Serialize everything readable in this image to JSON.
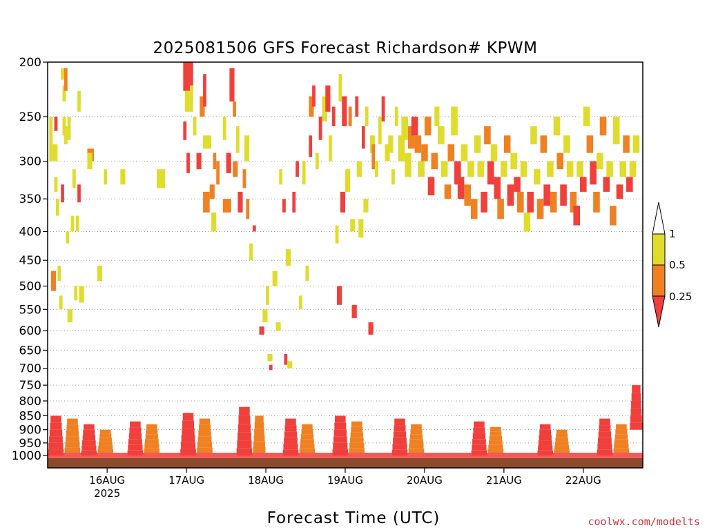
{
  "chart_data": {
    "type": "heatmap",
    "title": "2025081506 GFS Forecast Richardson# KPWM",
    "xlabel": "Forecast Time (UTC)",
    "ylabel": "",
    "credit": "coolwx.com/modelts",
    "y_scale": "log-pressure (inverted)",
    "ylim": [
      1000,
      200
    ],
    "xlim_hours": [
      0,
      180
    ],
    "y_ticks": [
      200,
      250,
      300,
      350,
      400,
      450,
      500,
      550,
      600,
      650,
      700,
      750,
      800,
      850,
      900,
      950,
      1000
    ],
    "x_ticks": [
      {
        "label": "16AUG",
        "sublabel": "2025",
        "hour": 18
      },
      {
        "label": "17AUG",
        "sublabel": "",
        "hour": 42
      },
      {
        "label": "18AUG",
        "sublabel": "",
        "hour": 66
      },
      {
        "label": "19AUG",
        "sublabel": "",
        "hour": 90
      },
      {
        "label": "20AUG",
        "sublabel": "",
        "hour": 114
      },
      {
        "label": "21AUG",
        "sublabel": "",
        "hour": 138
      },
      {
        "label": "22AUG",
        "sublabel": "",
        "hour": 162
      }
    ],
    "colorbar": {
      "levels": [
        {
          "label": "0.25",
          "value": 0.25
        },
        {
          "label": "0.5",
          "value": 0.5
        },
        {
          "label": "1",
          "value": 1
        }
      ],
      "bins": [
        {
          "range": "< 0.25",
          "color": "#f0403c"
        },
        {
          "range": "0.25 - 0.5",
          "color": "#ef8123"
        },
        {
          "range": "0.5 - 1",
          "color": "#e0dc2c"
        },
        {
          "range": "> 1",
          "color": "#ffffff"
        }
      ]
    },
    "colors": {
      "red": "#f0403c",
      "orange": "#ef8123",
      "yellow": "#e0dc2c",
      "ground": "#8b4a2b"
    },
    "grid": "dotted horizontal lines at pressure ticks",
    "cells": [
      [
        0.5,
        1.5,
        250,
        275,
        "y"
      ],
      [
        0.5,
        1.5,
        275,
        300,
        "y"
      ],
      [
        1,
        2.5,
        470,
        510,
        "o"
      ],
      [
        1.5,
        3,
        280,
        300,
        "y"
      ],
      [
        2,
        3,
        250,
        265,
        "r"
      ],
      [
        2,
        3,
        320,
        340,
        "y"
      ],
      [
        2.5,
        3.5,
        350,
        375,
        "y"
      ],
      [
        3,
        4,
        460,
        490,
        "y"
      ],
      [
        3.5,
        4.5,
        520,
        550,
        "y"
      ],
      [
        4,
        5,
        205,
        215,
        "y"
      ],
      [
        4,
        5,
        330,
        355,
        "r"
      ],
      [
        4.5,
        5.5,
        220,
        235,
        "y"
      ],
      [
        4.5,
        5.5,
        250,
        270,
        "y"
      ],
      [
        5,
        6,
        205,
        225,
        "o"
      ],
      [
        5,
        6,
        260,
        280,
        "y"
      ],
      [
        5.5,
        6.5,
        400,
        420,
        "y"
      ],
      [
        6,
        7,
        250,
        275,
        "y"
      ],
      [
        6,
        7.5,
        550,
        580,
        "y"
      ],
      [
        7,
        8,
        375,
        400,
        "y"
      ],
      [
        7.5,
        8.5,
        310,
        335,
        "y"
      ],
      [
        8,
        9,
        500,
        530,
        "y"
      ],
      [
        8.5,
        9.5,
        375,
        400,
        "y"
      ],
      [
        9,
        10,
        225,
        245,
        "y"
      ],
      [
        9,
        10,
        330,
        355,
        "r"
      ],
      [
        9.5,
        11,
        500,
        535,
        "y"
      ],
      [
        12,
        14,
        285,
        300,
        "o"
      ],
      [
        12,
        13.5,
        290,
        310,
        "y"
      ],
      [
        15,
        16.5,
        460,
        490,
        "y"
      ],
      [
        17,
        18,
        310,
        330,
        "y"
      ],
      [
        22,
        23.5,
        310,
        330,
        "y"
      ],
      [
        33,
        35.5,
        310,
        335,
        "y"
      ],
      [
        41,
        42.5,
        200,
        225,
        "r"
      ],
      [
        42.5,
        44,
        200,
        225,
        "r"
      ],
      [
        41.5,
        43,
        225,
        245,
        "y"
      ],
      [
        41,
        42,
        255,
        275,
        "r"
      ],
      [
        42,
        43,
        290,
        315,
        "r"
      ],
      [
        43,
        44,
        220,
        245,
        "y"
      ],
      [
        44,
        45,
        250,
        270,
        "y"
      ],
      [
        45,
        46.5,
        290,
        310,
        "r"
      ],
      [
        46,
        47.5,
        230,
        250,
        "o"
      ],
      [
        47,
        48,
        210,
        240,
        "r"
      ],
      [
        47,
        49.5,
        270,
        285,
        "y"
      ],
      [
        47,
        49,
        340,
        370,
        "o"
      ],
      [
        49,
        50.5,
        330,
        350,
        "o"
      ],
      [
        49.5,
        51,
        370,
        400,
        "y"
      ],
      [
        50,
        51,
        290,
        310,
        "o"
      ],
      [
        51,
        52,
        300,
        330,
        "o"
      ],
      [
        53,
        54,
        250,
        275,
        "y"
      ],
      [
        53,
        55.5,
        350,
        370,
        "o"
      ],
      [
        54,
        55.5,
        290,
        315,
        "r"
      ],
      [
        56,
        57.5,
        300,
        320,
        "o"
      ],
      [
        55,
        56.5,
        205,
        235,
        "r"
      ],
      [
        56,
        57,
        235,
        250,
        "o"
      ],
      [
        57,
        58,
        260,
        290,
        "y"
      ],
      [
        57.5,
        59,
        340,
        370,
        "r"
      ],
      [
        59,
        60,
        310,
        335,
        "o"
      ],
      [
        59.5,
        61,
        270,
        300,
        "y"
      ],
      [
        60,
        61,
        350,
        380,
        "o"
      ],
      [
        61,
        62,
        420,
        450,
        "y"
      ],
      [
        62,
        63,
        390,
        400,
        "r"
      ],
      [
        64,
        65.5,
        590,
        610,
        "r"
      ],
      [
        65,
        66.5,
        550,
        580,
        "y"
      ],
      [
        66,
        67,
        500,
        540,
        "y"
      ],
      [
        66.5,
        68,
        660,
        680,
        "y"
      ],
      [
        67,
        68,
        690,
        705,
        "r"
      ],
      [
        68,
        69.5,
        470,
        500,
        "y"
      ],
      [
        69,
        70.5,
        580,
        600,
        "y"
      ],
      [
        70,
        71,
        310,
        330,
        "y"
      ],
      [
        71,
        72,
        350,
        370,
        "r"
      ],
      [
        71.5,
        72.5,
        660,
        690,
        "r"
      ],
      [
        72,
        73.5,
        430,
        460,
        "y"
      ],
      [
        72.5,
        74,
        680,
        700,
        "y"
      ],
      [
        74,
        75,
        340,
        370,
        "r"
      ],
      [
        75,
        76,
        300,
        320,
        "r"
      ],
      [
        76,
        77,
        520,
        550,
        "y"
      ],
      [
        77,
        78,
        300,
        330,
        "y"
      ],
      [
        78,
        79,
        460,
        490,
        "y"
      ],
      [
        79,
        80,
        270,
        295,
        "r"
      ],
      [
        79,
        80.5,
        230,
        250,
        "o"
      ],
      [
        80,
        81,
        220,
        240,
        "r"
      ],
      [
        81,
        82,
        290,
        310,
        "y"
      ],
      [
        82,
        83,
        250,
        275,
        "r"
      ],
      [
        83,
        84.5,
        230,
        255,
        "y"
      ],
      [
        84,
        85.5,
        220,
        245,
        "r"
      ],
      [
        85,
        86,
        270,
        300,
        "y"
      ],
      [
        86,
        87,
        240,
        260,
        "r"
      ],
      [
        87,
        88,
        390,
        420,
        "y"
      ],
      [
        87.5,
        89,
        500,
        540,
        "r"
      ],
      [
        88,
        89,
        210,
        235,
        "y"
      ],
      [
        88.5,
        90,
        340,
        370,
        "r"
      ],
      [
        89,
        90.5,
        230,
        260,
        "r"
      ],
      [
        90,
        91.5,
        310,
        340,
        "y"
      ],
      [
        91,
        92,
        240,
        260,
        "o"
      ],
      [
        91.5,
        93,
        380,
        400,
        "y"
      ],
      [
        92,
        93.5,
        540,
        570,
        "r"
      ],
      [
        93,
        94,
        230,
        250,
        "r"
      ],
      [
        93.5,
        95,
        300,
        320,
        "y"
      ],
      [
        94,
        95.5,
        380,
        410,
        "y"
      ],
      [
        95,
        96,
        260,
        285,
        "r"
      ],
      [
        95.5,
        97,
        350,
        370,
        "y"
      ],
      [
        96,
        97,
        240,
        260,
        "y"
      ],
      [
        97,
        98.5,
        580,
        610,
        "r"
      ],
      [
        97.5,
        99,
        270,
        290,
        "y"
      ],
      [
        98,
        99,
        280,
        310,
        "o"
      ],
      [
        99,
        100,
        300,
        320,
        "y"
      ],
      [
        100,
        101,
        250,
        280,
        "y"
      ],
      [
        101,
        102,
        230,
        255,
        "r"
      ],
      [
        102,
        103.5,
        280,
        300,
        "y"
      ],
      [
        103,
        104.5,
        270,
        290,
        "y"
      ],
      [
        104,
        105,
        310,
        330,
        "y"
      ],
      [
        105,
        106,
        240,
        260,
        "y"
      ],
      [
        106,
        108,
        270,
        300,
        "y"
      ],
      [
        107,
        109,
        250,
        275,
        "y"
      ],
      [
        108,
        110,
        290,
        320,
        "y"
      ],
      [
        109,
        111,
        260,
        285,
        "o"
      ],
      [
        110,
        112,
        250,
        270,
        "r"
      ],
      [
        111,
        113,
        270,
        290,
        "o"
      ],
      [
        112,
        114,
        300,
        320,
        "y"
      ],
      [
        113,
        115,
        280,
        300,
        "o"
      ],
      [
        114,
        116,
        250,
        270,
        "o"
      ],
      [
        115,
        117,
        320,
        345,
        "r"
      ],
      [
        116,
        118,
        290,
        310,
        "o"
      ],
      [
        117,
        118.5,
        240,
        260,
        "y"
      ],
      [
        118,
        120,
        260,
        280,
        "y"
      ],
      [
        119,
        121,
        300,
        320,
        "y"
      ],
      [
        120,
        122,
        330,
        350,
        "o"
      ],
      [
        121,
        123,
        280,
        300,
        "o"
      ],
      [
        122,
        124,
        240,
        270,
        "y"
      ],
      [
        123,
        125,
        300,
        330,
        "r"
      ],
      [
        124,
        126,
        320,
        350,
        "r"
      ],
      [
        125,
        127,
        280,
        300,
        "y"
      ],
      [
        126,
        128,
        330,
        360,
        "o"
      ],
      [
        127,
        129,
        300,
        320,
        "y"
      ],
      [
        128,
        130,
        350,
        380,
        "o"
      ],
      [
        129,
        131,
        270,
        290,
        "y"
      ],
      [
        130,
        132,
        300,
        320,
        "y"
      ],
      [
        131,
        133,
        340,
        370,
        "r"
      ],
      [
        132,
        134,
        260,
        280,
        "o"
      ],
      [
        133,
        135,
        300,
        330,
        "r"
      ],
      [
        134,
        136,
        280,
        300,
        "y"
      ],
      [
        135,
        137,
        320,
        350,
        "r"
      ],
      [
        136,
        138,
        350,
        380,
        "o"
      ],
      [
        137,
        139,
        300,
        320,
        "y"
      ],
      [
        138,
        140,
        270,
        290,
        "o"
      ],
      [
        139,
        141,
        330,
        360,
        "r"
      ],
      [
        140,
        142,
        290,
        310,
        "y"
      ],
      [
        141,
        143,
        320,
        340,
        "r"
      ],
      [
        142,
        144,
        340,
        370,
        "o"
      ],
      [
        143,
        145,
        300,
        320,
        "y"
      ],
      [
        144,
        146,
        370,
        400,
        "y"
      ],
      [
        145,
        147,
        340,
        370,
        "r"
      ],
      [
        146,
        148,
        260,
        280,
        "y"
      ],
      [
        147,
        149,
        310,
        330,
        "y"
      ],
      [
        148,
        150,
        350,
        380,
        "o"
      ],
      [
        149,
        151,
        270,
        290,
        "o"
      ],
      [
        150,
        152,
        330,
        360,
        "r"
      ],
      [
        151,
        153,
        300,
        320,
        "y"
      ],
      [
        152,
        154,
        340,
        370,
        "o"
      ],
      [
        153,
        155,
        250,
        270,
        "y"
      ],
      [
        154,
        156,
        290,
        310,
        "o"
      ],
      [
        155,
        157,
        330,
        360,
        "r"
      ],
      [
        156,
        158,
        270,
        290,
        "y"
      ],
      [
        157,
        159,
        300,
        320,
        "y"
      ],
      [
        158,
        160,
        340,
        370,
        "o"
      ],
      [
        159,
        161,
        360,
        390,
        "r"
      ],
      [
        160,
        162,
        300,
        320,
        "y"
      ],
      [
        161,
        163,
        320,
        340,
        "r"
      ],
      [
        162,
        164,
        240,
        260,
        "y"
      ],
      [
        163,
        165,
        270,
        290,
        "o"
      ],
      [
        164,
        166,
        300,
        330,
        "r"
      ],
      [
        165,
        167,
        340,
        370,
        "o"
      ],
      [
        166,
        168,
        290,
        310,
        "y"
      ],
      [
        167,
        169,
        250,
        270,
        "o"
      ],
      [
        168,
        170,
        320,
        340,
        "r"
      ],
      [
        169,
        171,
        300,
        320,
        "y"
      ],
      [
        170,
        172,
        360,
        390,
        "o"
      ],
      [
        171,
        173,
        250,
        280,
        "y"
      ],
      [
        172,
        174,
        330,
        350,
        "r"
      ],
      [
        173,
        175,
        300,
        320,
        "y"
      ],
      [
        174,
        176,
        270,
        290,
        "o"
      ],
      [
        175,
        177,
        320,
        340,
        "r"
      ],
      [
        176,
        178,
        300,
        320,
        "y"
      ],
      [
        177,
        179,
        270,
        290,
        "y"
      ]
    ],
    "lower_blobs": [
      [
        0,
        5,
        850,
        1000,
        "r"
      ],
      [
        5,
        10,
        860,
        990,
        "o"
      ],
      [
        10,
        15,
        880,
        1000,
        "r"
      ],
      [
        15,
        20,
        900,
        990,
        "o"
      ],
      [
        24,
        29,
        870,
        1000,
        "r"
      ],
      [
        29,
        34,
        880,
        990,
        "o"
      ],
      [
        40,
        45,
        840,
        1000,
        "r"
      ],
      [
        45,
        50,
        860,
        990,
        "o"
      ],
      [
        57,
        62,
        820,
        1000,
        "r"
      ],
      [
        62,
        66,
        850,
        990,
        "o"
      ],
      [
        71,
        76,
        860,
        1000,
        "r"
      ],
      [
        76,
        81,
        880,
        990,
        "o"
      ],
      [
        86,
        91,
        850,
        1000,
        "r"
      ],
      [
        91,
        96,
        870,
        990,
        "o"
      ],
      [
        104,
        109,
        860,
        1000,
        "r"
      ],
      [
        109,
        114,
        880,
        990,
        "o"
      ],
      [
        128,
        133,
        870,
        1000,
        "r"
      ],
      [
        133,
        138,
        890,
        990,
        "o"
      ],
      [
        148,
        153,
        880,
        1000,
        "r"
      ],
      [
        153,
        158,
        900,
        990,
        "o"
      ],
      [
        166,
        171,
        860,
        1000,
        "r"
      ],
      [
        171,
        176,
        880,
        990,
        "o"
      ],
      [
        176,
        180,
        750,
        900,
        "r"
      ]
    ]
  }
}
